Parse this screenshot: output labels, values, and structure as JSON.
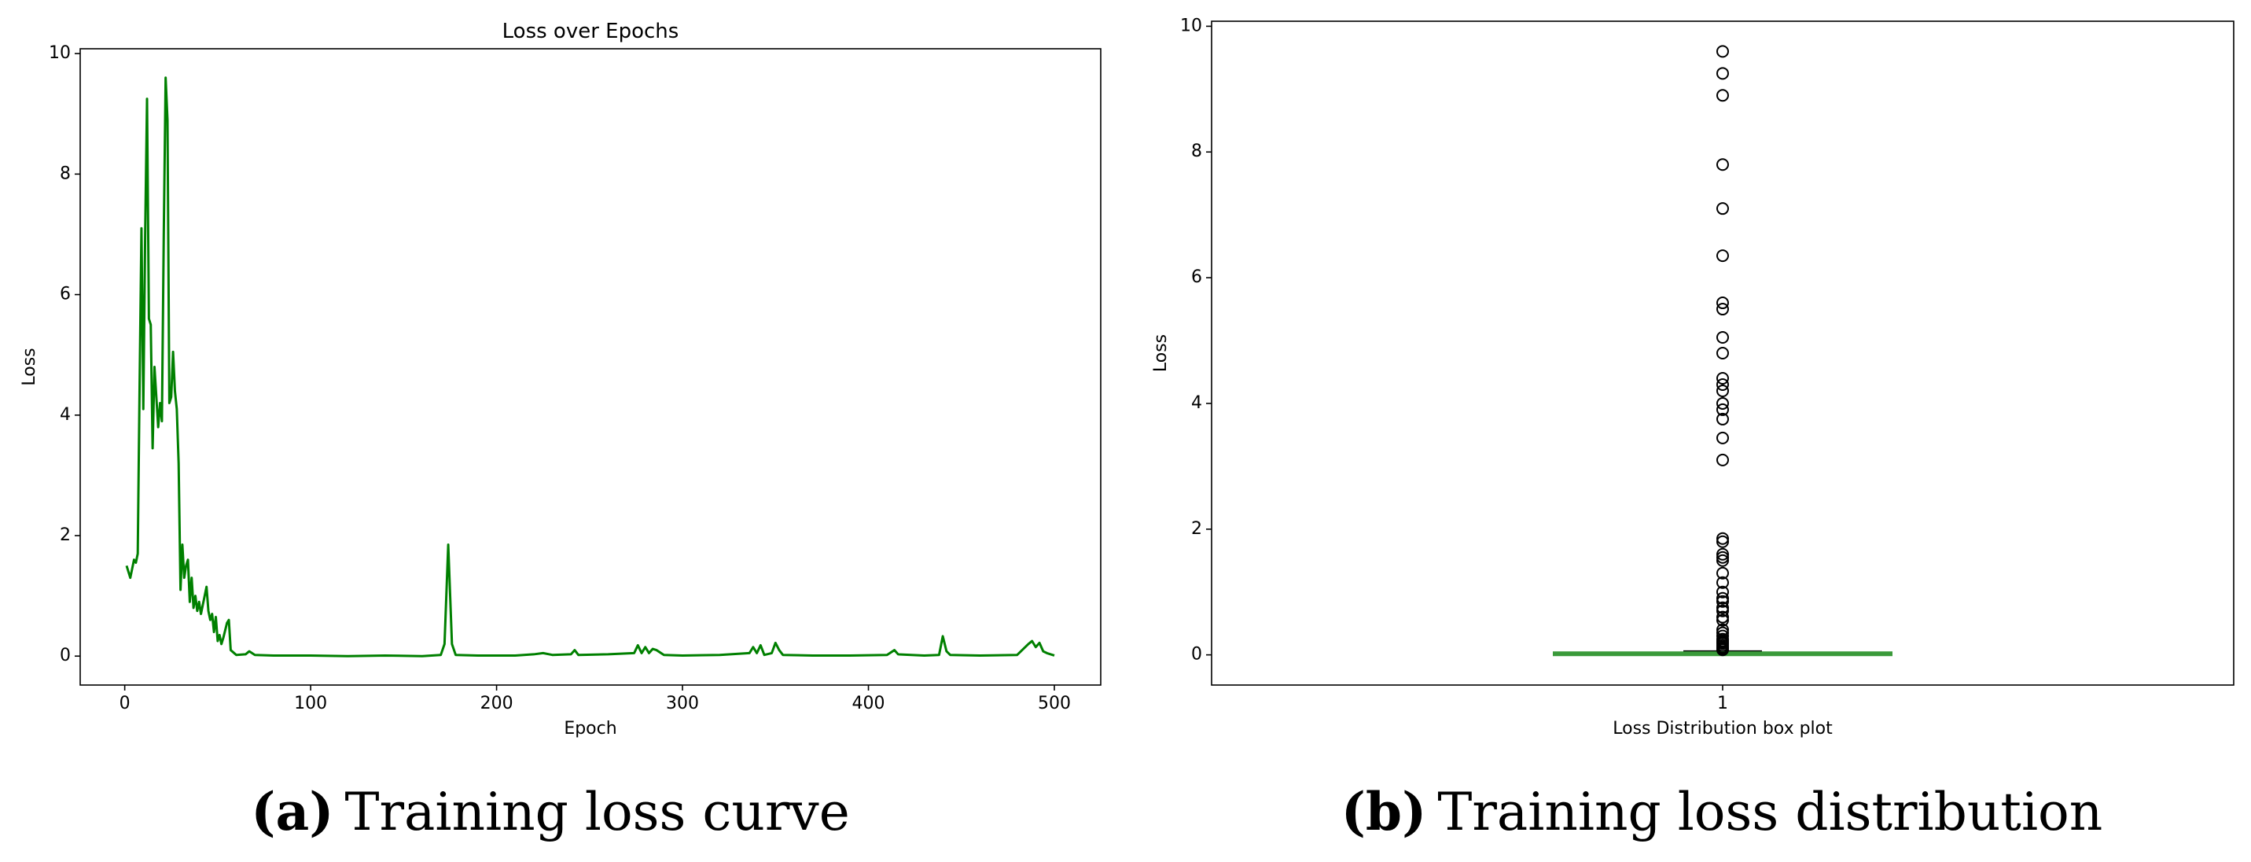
{
  "chart_data": [
    {
      "type": "line",
      "title": "Loss over Epochs",
      "x_label": "Epoch",
      "y_label": "Loss",
      "caption_label": "(a)",
      "caption": "Training loss curve",
      "color": "#008000",
      "x": [
        1,
        3,
        5,
        6,
        7,
        8,
        9,
        10,
        11,
        12,
        13,
        14,
        15,
        16,
        17,
        18,
        19,
        20,
        21,
        22,
        23,
        24,
        25,
        26,
        27,
        28,
        29,
        30,
        31,
        32,
        33,
        34,
        35,
        36,
        37,
        38,
        39,
        40,
        41,
        42,
        43,
        44,
        45,
        46,
        47,
        48,
        49,
        50,
        51,
        52,
        53,
        55,
        56,
        57,
        60,
        65,
        67,
        70,
        80,
        100,
        120,
        140,
        160,
        170,
        172,
        174,
        176,
        178,
        190,
        210,
        220,
        225,
        230,
        240,
        242,
        244,
        260,
        274,
        276,
        278,
        280,
        282,
        284,
        286,
        290,
        300,
        320,
        336,
        338,
        340,
        342,
        344,
        348,
        350,
        352,
        354,
        370,
        390,
        410,
        414,
        416,
        430,
        438,
        440,
        442,
        444,
        460,
        480,
        486,
        488,
        490,
        492,
        494,
        496,
        500
      ],
      "values": [
        1.5,
        1.3,
        1.6,
        1.55,
        1.7,
        4.5,
        7.1,
        4.1,
        7.0,
        9.25,
        5.6,
        5.5,
        3.45,
        4.8,
        4.3,
        3.8,
        4.2,
        3.9,
        7.0,
        9.6,
        8.9,
        4.2,
        4.3,
        5.05,
        4.4,
        4.1,
        3.2,
        1.1,
        1.85,
        1.3,
        1.5,
        1.6,
        0.9,
        1.3,
        0.8,
        1.0,
        0.75,
        0.9,
        0.7,
        0.85,
        1.0,
        1.15,
        0.75,
        0.6,
        0.7,
        0.4,
        0.65,
        0.25,
        0.35,
        0.2,
        0.3,
        0.55,
        0.6,
        0.1,
        0.02,
        0.03,
        0.08,
        0.02,
        0.01,
        0.01,
        0.0,
        0.01,
        0.0,
        0.02,
        0.2,
        1.85,
        0.2,
        0.02,
        0.01,
        0.01,
        0.03,
        0.05,
        0.02,
        0.03,
        0.1,
        0.02,
        0.03,
        0.05,
        0.18,
        0.05,
        0.15,
        0.05,
        0.12,
        0.1,
        0.02,
        0.01,
        0.02,
        0.05,
        0.15,
        0.05,
        0.18,
        0.02,
        0.05,
        0.22,
        0.1,
        0.02,
        0.01,
        0.01,
        0.02,
        0.1,
        0.03,
        0.01,
        0.02,
        0.33,
        0.08,
        0.02,
        0.01,
        0.02,
        0.2,
        0.25,
        0.15,
        0.22,
        0.08,
        0.05,
        0.01
      ],
      "xlim": [
        -23.95,
        524.95
      ],
      "xticks": [
        0,
        100,
        200,
        300,
        400,
        500
      ],
      "ylim": [
        -0.48,
        10.08
      ],
      "yticks": [
        0,
        2,
        4,
        6,
        8,
        10
      ]
    },
    {
      "type": "box",
      "x_label": "Loss Distribution box plot",
      "y_label": "Loss",
      "caption_label": "(b)",
      "caption": "Training loss distribution",
      "color": "#3a9a3a",
      "categories": [
        "1"
      ],
      "position": 1,
      "whisker_low": 0,
      "q1": 0.005,
      "median": 0.01,
      "q3": 0.03,
      "whisker_high": 0.06,
      "outliers": [
        9.6,
        9.25,
        8.9,
        7.8,
        7.1,
        6.35,
        5.6,
        5.5,
        5.05,
        4.8,
        4.4,
        4.3,
        4.2,
        4.0,
        3.9,
        3.75,
        3.45,
        3.1,
        1.85,
        1.8,
        1.6,
        1.55,
        1.5,
        1.3,
        1.15,
        1.0,
        0.9,
        0.85,
        0.75,
        0.7,
        0.6,
        0.55,
        0.4,
        0.35,
        0.3,
        0.25,
        0.22,
        0.2,
        0.18,
        0.15,
        0.12,
        0.1,
        0.08
      ],
      "xlim": [
        0.5,
        1.5
      ],
      "ylim": [
        -0.48,
        10.08
      ],
      "yticks": [
        0,
        2,
        4,
        6,
        8,
        10
      ]
    }
  ]
}
